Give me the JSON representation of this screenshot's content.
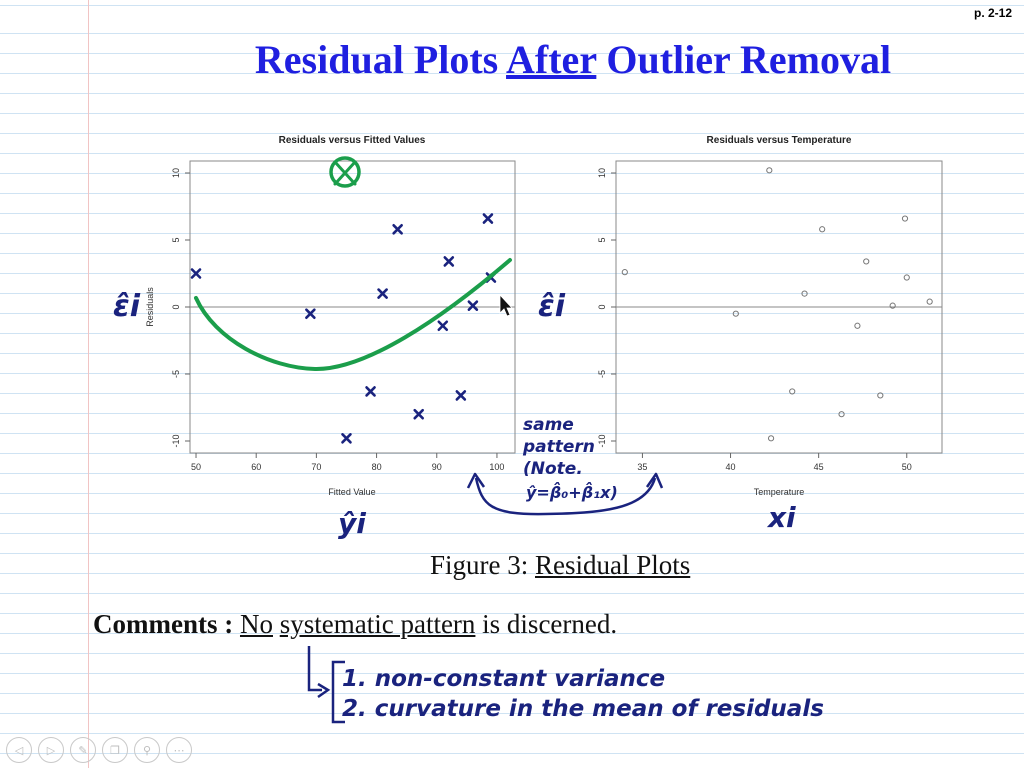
{
  "page_number": "p. 2-12",
  "title": {
    "before": "Residual Plots ",
    "underlined": "After",
    "after": " Outlier Removal"
  },
  "caption": {
    "prefix": "Figure 3: ",
    "underlined": "Residual Plots"
  },
  "comments": {
    "label": "Comments :",
    "no": "No",
    "phrase": "systematic pattern",
    "rest": " is discerned."
  },
  "annotations": {
    "epsilon_left": "ε̂i",
    "epsilon_right": "ε̂i",
    "yhat": "ŷi",
    "xi": "xi",
    "note_lines": [
      "same",
      "pattern",
      "(Note.",
      "ŷ=β̂₀+β̂₁x)"
    ],
    "list": [
      "1. non-constant variance",
      "2. curvature in the mean of residuals"
    ]
  },
  "colors": {
    "title": "#1f1fe0",
    "ink": "#1a237e",
    "green": "#1b9e4b"
  },
  "toolbar": [
    "previous-icon",
    "next-icon",
    "pen-icon",
    "pages-icon",
    "zoom-icon",
    "more-icon"
  ],
  "chart_data": [
    {
      "type": "scatter",
      "title": "Residuals versus Fitted Values",
      "xlabel": "Fitted Value",
      "ylabel": "Residuals",
      "xlim": [
        49,
        103
      ],
      "ylim": [
        -10,
        10
      ],
      "xticks": [
        50,
        60,
        70,
        80,
        90,
        100
      ],
      "yticks": [
        -10,
        -5,
        0,
        5,
        10
      ],
      "marker": "x",
      "points": [
        [
          50,
          2.5
        ],
        [
          69,
          -0.5
        ],
        [
          75,
          -9.8
        ],
        [
          79,
          -6.3
        ],
        [
          81,
          1
        ],
        [
          83.5,
          5.8
        ],
        [
          87,
          -8
        ],
        [
          91,
          -1.4
        ],
        [
          92,
          3.4
        ],
        [
          94,
          -6.6
        ],
        [
          96,
          0.1
        ],
        [
          98.5,
          6.6
        ],
        [
          99,
          2.2
        ]
      ],
      "circled_point": [
        75,
        10.2
      ]
    },
    {
      "type": "scatter",
      "title": "Residuals versus Temperature",
      "xlabel": "Temperature",
      "ylabel": "",
      "xlim": [
        33.5,
        52
      ],
      "ylim": [
        -10,
        10
      ],
      "xticks": [
        35,
        40,
        45,
        50
      ],
      "yticks": [
        -10,
        -5,
        0,
        5,
        10
      ],
      "marker": "o",
      "points": [
        [
          34,
          2.6
        ],
        [
          40.3,
          -0.5
        ],
        [
          42.2,
          10.2
        ],
        [
          42.3,
          -9.8
        ],
        [
          43.5,
          -6.3
        ],
        [
          44.2,
          1
        ],
        [
          45.2,
          5.8
        ],
        [
          46.3,
          -8
        ],
        [
          47.2,
          -1.4
        ],
        [
          47.7,
          3.4
        ],
        [
          48.5,
          -6.6
        ],
        [
          49.2,
          0.1
        ],
        [
          49.9,
          6.6
        ],
        [
          50,
          2.2
        ],
        [
          51.3,
          0.4
        ]
      ]
    }
  ]
}
